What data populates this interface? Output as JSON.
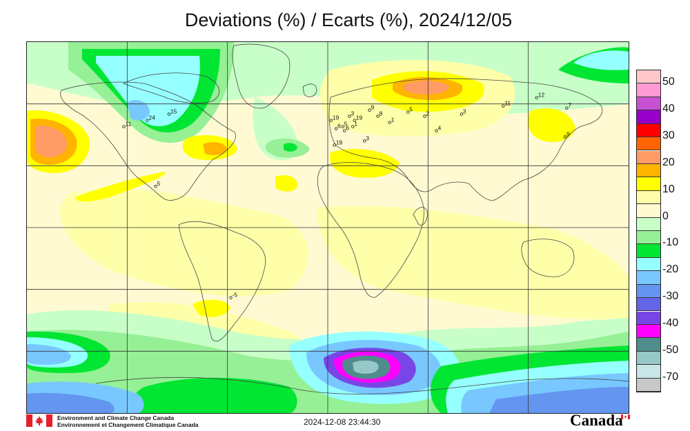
{
  "title": "Deviations (%) / Ecarts (%), 2024/12/05",
  "legend": {
    "labels": [
      "50",
      "40",
      "30",
      "20",
      "10",
      "0",
      "-10",
      "-20",
      "-30",
      "-40",
      "-50",
      "-70"
    ],
    "colors": [
      "#ffc8cd",
      "#ff9bd2",
      "#c850d2",
      "#9600c8",
      "#ff0000",
      "#ff6400",
      "#ff9b64",
      "#ffb400",
      "#ffff00",
      "#ffffaa",
      "#fffad2",
      "#c8ffc8",
      "#96f096",
      "#00e632",
      "#96ffff",
      "#78c8ff",
      "#6496f0",
      "#6464e6",
      "#7846e6",
      "#ff00ff",
      "#508c8c",
      "#96c8c8",
      "#c8e6e6",
      "#c8c8c8"
    ]
  },
  "map": {
    "stations": [
      {
        "label": "24",
        "lon": -108,
        "lat": 52
      },
      {
        "label": "15",
        "lon": -95,
        "lat": 55
      },
      {
        "label": "11",
        "lon": -122,
        "lat": 49
      },
      {
        "label": "5",
        "lon": -103,
        "lat": 20
      },
      {
        "label": "-5",
        "lon": -58,
        "lat": -34
      },
      {
        "label": "19",
        "lon": 2,
        "lat": 52
      },
      {
        "label": "6",
        "lon": 5,
        "lat": 48
      },
      {
        "label": "3",
        "lon": 13,
        "lat": 54
      },
      {
        "label": "5",
        "lon": 9,
        "lat": 49
      },
      {
        "label": "6",
        "lon": 10,
        "lat": 47
      },
      {
        "label": "19",
        "lon": 16,
        "lat": 52
      },
      {
        "label": "1",
        "lon": 15,
        "lat": 49
      },
      {
        "label": "9",
        "lon": 25,
        "lat": 57
      },
      {
        "label": "8",
        "lon": 30,
        "lat": 54
      },
      {
        "label": "19",
        "lon": 4,
        "lat": 40
      },
      {
        "label": "3",
        "lon": 22,
        "lat": 42
      },
      {
        "label": "1",
        "lon": 37,
        "lat": 51
      },
      {
        "label": "5",
        "lon": 48,
        "lat": 56
      },
      {
        "label": "2",
        "lon": 58,
        "lat": 54
      },
      {
        "label": "3",
        "lon": 80,
        "lat": 55
      },
      {
        "label": "4",
        "lon": 65,
        "lat": 47
      },
      {
        "label": "11",
        "lon": 105,
        "lat": 59
      },
      {
        "label": "12",
        "lon": 125,
        "lat": 63
      },
      {
        "label": "7",
        "lon": 143,
        "lat": 58
      },
      {
        "label": "9",
        "lon": 142,
        "lat": 44
      }
    ]
  },
  "footer": {
    "org_en": "Environment and Climate Change Canada",
    "org_fr": "Environnement et Changement Climatique Canada",
    "timestamp": "2024-12-08 23:44:30",
    "wordmark": "Canada"
  }
}
